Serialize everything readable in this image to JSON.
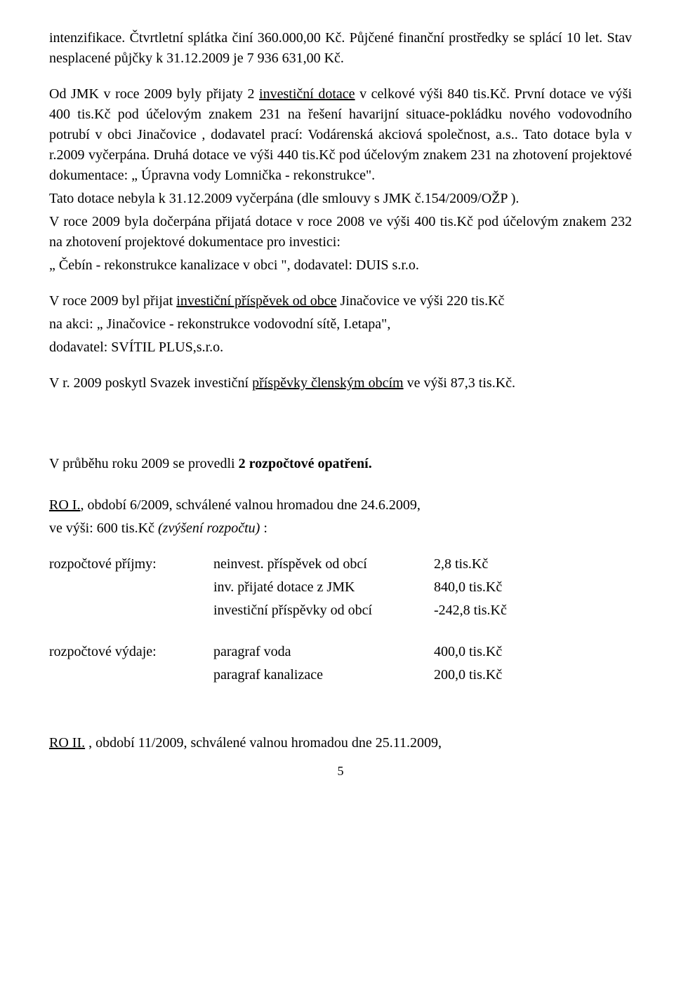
{
  "para1": {
    "t1": "intenzifikace. Čtvrtletní splátka činí 360.000,00 Kč. Půjčené finanční prostředky se splácí 10 let. Stav nesplacené půjčky k 31.12.2009 je 7 936 631,00 Kč."
  },
  "para2": {
    "t1": "Od JMK v roce 2009 byly přijaty 2 ",
    "u1": "investiční dotace",
    "t2": " v celkové výši 840 tis.Kč. První dotace ve výši 400 tis.Kč pod účelovým znakem 231 na řešení havarijní situace-pokládku nového vodovodního potrubí v obci Jinačovice , dodavatel prací: Vodárenská akciová společnost, a.s.. Tato dotace byla v r.2009 vyčerpána. Druhá dotace ve výši 440 tis.Kč pod účelovým znakem 231 na zhotovení projektové dokumentace: „ Úpravna vody Lomnička - rekonstrukce\".",
    "t3": "Tato dotace nebyla k 31.12.2009 vyčerpána (dle smlouvy s JMK č.154/2009/OŽP ).",
    "t4": "V roce 2009 byla dočerpána přijatá dotace v roce 2008 ve výši 400 tis.Kč pod účelovým znakem 232 na zhotovení projektové dokumentace pro investici:",
    "t5": "„ Čebín - rekonstrukce kanalizace v obci \", dodavatel: DUIS s.r.o."
  },
  "para3": {
    "t1": "V roce 2009 byl přijat ",
    "u1": "investiční příspěvek od obce",
    "t2": " Jinačovice ve výši 220 tis.Kč",
    "t3": " na akci: „ Jinačovice - rekonstrukce vodovodní sítě, I.etapa\",",
    "t4": " dodavatel: SVÍTIL PLUS,s.r.o."
  },
  "para4": {
    "t1": "V r. 2009 poskytl Svazek investiční ",
    "u1": "příspěvky členským obcím",
    "t2": " ve výši 87,3 tis.Kč."
  },
  "para5": {
    "t1": "V průběhu roku 2009 se provedli ",
    "b1": "2 rozpočtové opatření."
  },
  "ro1": {
    "u1": "RO I.",
    "t1": ", období 6/2009, schválené valnou hromadou dne 24.6.2009,",
    "t2": "ve výši: 600 tis.Kč ",
    "i1": "(zvýšení rozpočtu)",
    "t3": " :"
  },
  "table": {
    "income_label": "rozpočtové příjmy:",
    "income_rows": [
      {
        "desc": "neinvest. příspěvek od obcí",
        "val": "2,8 tis.Kč"
      },
      {
        "desc": "inv. přijaté dotace z JMK",
        "val": "840,0 tis.Kč"
      },
      {
        "desc": "investiční příspěvky od obcí",
        "val": "-242,8 tis.Kč"
      }
    ],
    "expense_label": "rozpočtové výdaje:",
    "expense_rows": [
      {
        "desc": "paragraf voda",
        "val": "400,0 tis.Kč"
      },
      {
        "desc": "paragraf kanalizace",
        "val": "200,0 tis.Kč"
      }
    ]
  },
  "ro2": {
    "u1": "RO II.",
    "t1": " , období 11/2009, schválené valnou hromadou dne 25.11.2009,"
  },
  "page_num": "5"
}
